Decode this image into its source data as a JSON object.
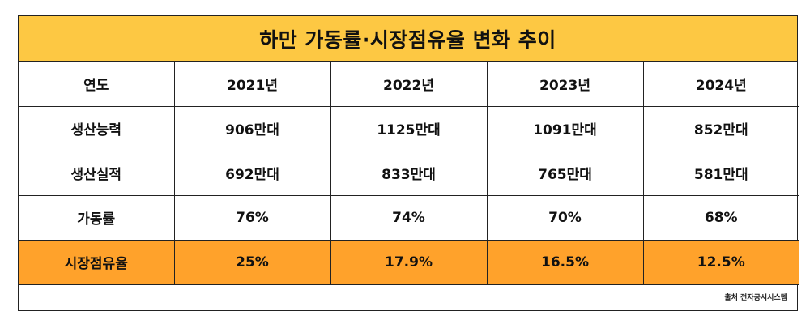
{
  "title": "하만 가동률·시장점유율 변화 추이",
  "table": {
    "header": [
      "연도",
      "2021년",
      "2022년",
      "2023년",
      "2024년"
    ],
    "rows": [
      {
        "label": "생산능력",
        "values": [
          "906만대",
          "1125만대",
          "1091만대",
          "852만대"
        ]
      },
      {
        "label": "생산실적",
        "values": [
          "692만대",
          "833만대",
          "765만대",
          "581만대"
        ]
      },
      {
        "label": "가동률",
        "values": [
          "76%",
          "74%",
          "70%",
          "68%"
        ]
      },
      {
        "label": "시장점유율",
        "values": [
          "25%",
          "17.9%",
          "16.5%",
          "12.5%"
        ]
      }
    ]
  },
  "source": "출처 전자공시시스템",
  "colors": {
    "title_background": "#fdc843",
    "highlight_row": "#ffa22b",
    "border": "#222222"
  }
}
